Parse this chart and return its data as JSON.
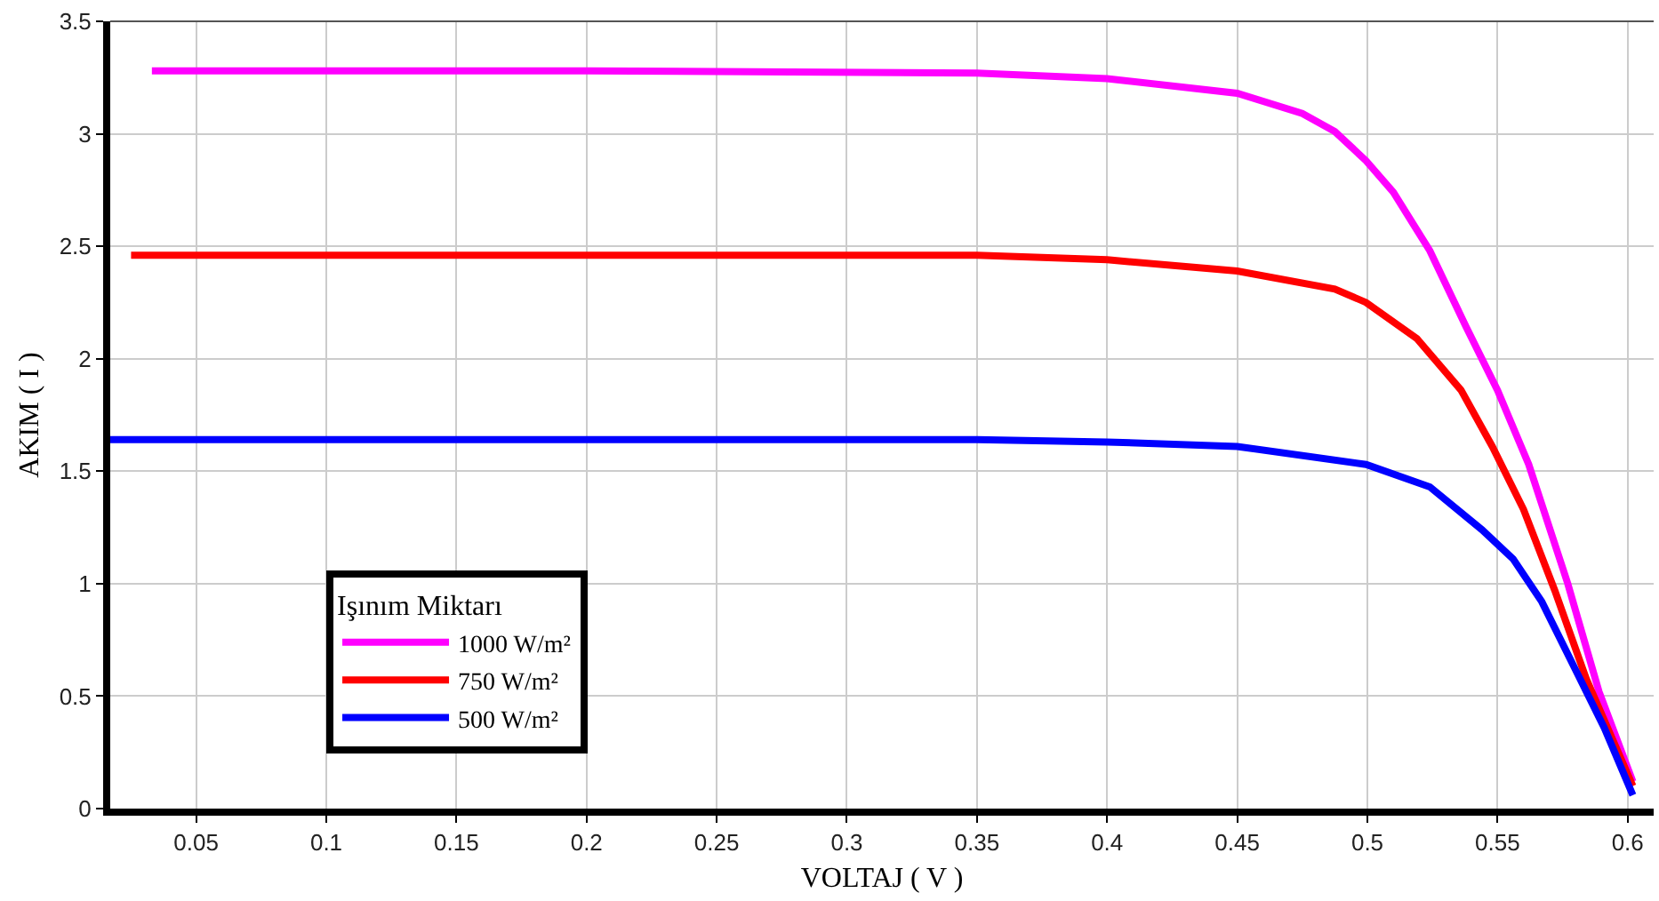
{
  "chart_data": {
    "type": "line",
    "xlabel": "VOLTAJ ( V )",
    "ylabel": "AKIM ( I )",
    "legend_title": "Işınım Miktarı",
    "legend": "bottom left",
    "grid": true,
    "marker": "none",
    "line_style": "solid",
    "xlim": [
      0.017,
      0.61
    ],
    "xticks": [
      0.05,
      0.1,
      0.15,
      0.2,
      0.25,
      0.3,
      0.35,
      0.4,
      0.45,
      0.5,
      0.55,
      0.6
    ],
    "ylim": [
      0,
      3.5
    ],
    "yticks": [
      0,
      0.5,
      1,
      1.5,
      2,
      2.5,
      3,
      3.5
    ],
    "series": [
      {
        "name": "1000 W/m²",
        "color": "#ff00ff",
        "x": [
          0.033,
          0.2,
          0.35,
          0.4,
          0.45,
          0.475,
          0.4875,
          0.4995,
          0.51,
          0.524,
          0.538,
          0.55,
          0.562,
          0.577,
          0.589,
          0.602
        ],
        "values": [
          3.28,
          3.28,
          3.27,
          3.245,
          3.18,
          3.09,
          3.01,
          2.88,
          2.74,
          2.48,
          2.14,
          1.86,
          1.53,
          1.0,
          0.52,
          0.12
        ]
      },
      {
        "name": "750 W/m²",
        "color": "#ff0000",
        "x": [
          0.025,
          0.2,
          0.35,
          0.4,
          0.45,
          0.4875,
          0.4995,
          0.519,
          0.536,
          0.548,
          0.56,
          0.572,
          0.584,
          0.602
        ],
        "values": [
          2.46,
          2.46,
          2.46,
          2.44,
          2.39,
          2.31,
          2.25,
          2.09,
          1.86,
          1.61,
          1.33,
          0.97,
          0.58,
          0.1
        ]
      },
      {
        "name": "500 W/m²",
        "color": "#0000ff",
        "x": [
          0.017,
          0.2,
          0.35,
          0.4,
          0.45,
          0.4995,
          0.524,
          0.544,
          0.556,
          0.567,
          0.579,
          0.591,
          0.602
        ],
        "values": [
          1.64,
          1.64,
          1.64,
          1.63,
          1.61,
          1.53,
          1.43,
          1.24,
          1.11,
          0.92,
          0.64,
          0.36,
          0.06
        ]
      }
    ]
  }
}
